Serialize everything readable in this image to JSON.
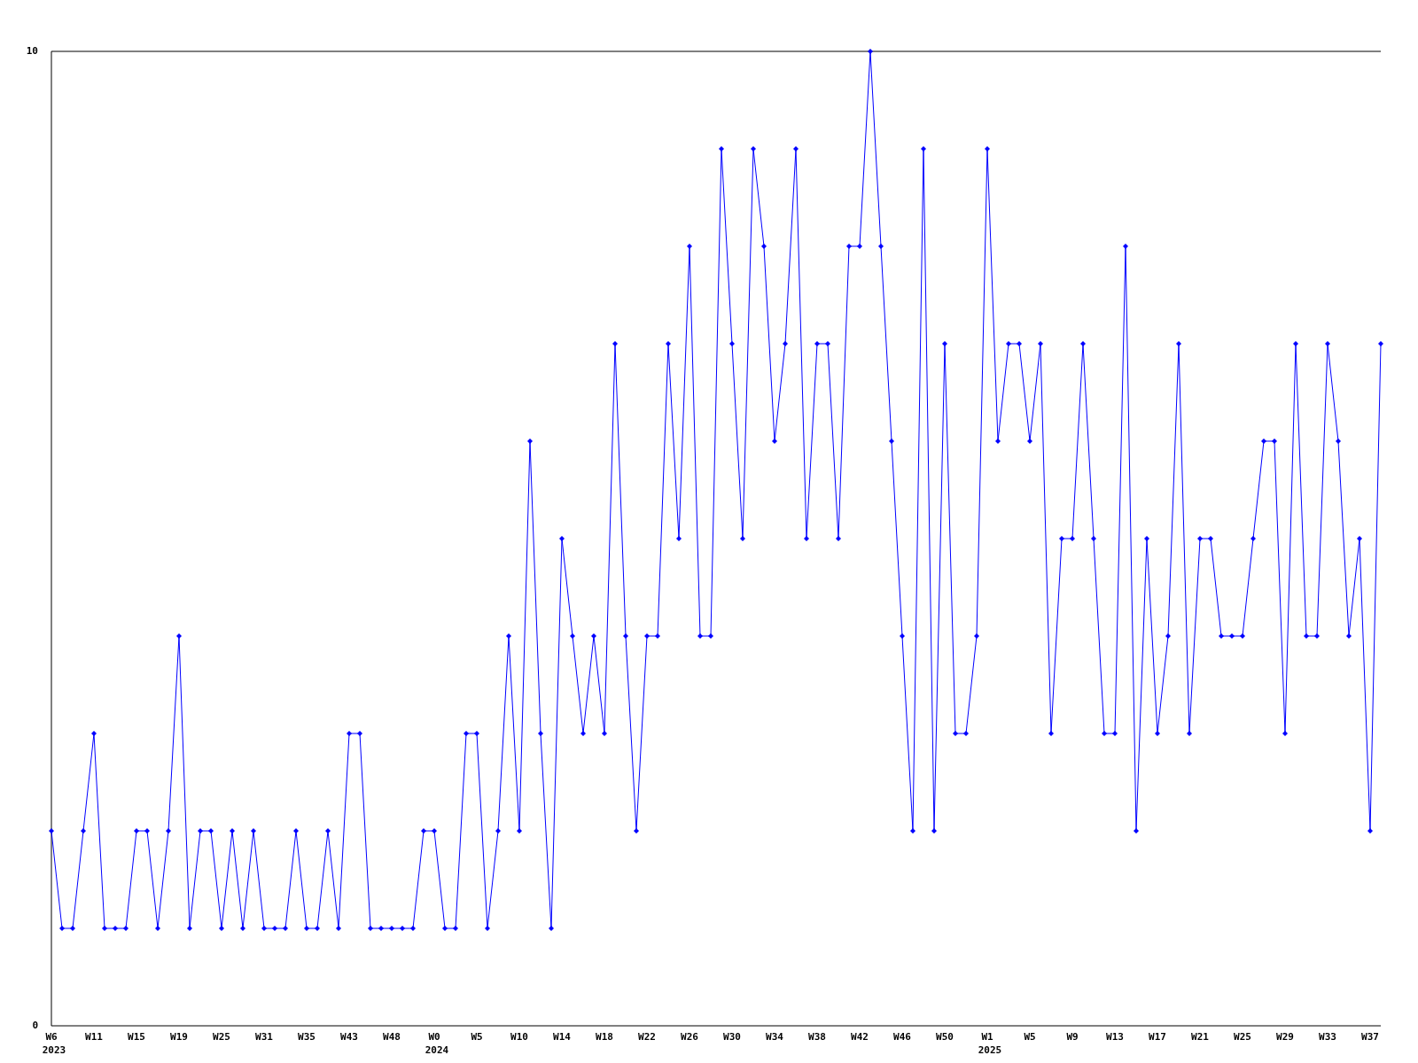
{
  "chart_data": {
    "type": "line",
    "color": "#0000ff",
    "marker": "diamond",
    "grid": false,
    "ylim": [
      0,
      10
    ],
    "yticks": [
      0,
      10
    ],
    "categories": [
      "W6\n2023",
      null,
      null,
      null,
      "W11",
      null,
      null,
      null,
      "W15",
      null,
      null,
      null,
      "W19",
      null,
      null,
      null,
      "W25",
      null,
      null,
      null,
      "W31",
      null,
      null,
      null,
      "W35",
      null,
      null,
      null,
      "W43",
      null,
      null,
      null,
      "W48",
      null,
      null,
      null,
      "W0\n2024",
      null,
      null,
      null,
      "W5",
      null,
      null,
      null,
      "W10",
      null,
      null,
      null,
      "W14",
      null,
      null,
      null,
      "W18",
      null,
      null,
      null,
      "W22",
      null,
      null,
      null,
      "W26",
      null,
      null,
      null,
      "W30",
      null,
      null,
      null,
      "W34",
      null,
      null,
      null,
      "W38",
      null,
      null,
      null,
      "W42",
      null,
      null,
      null,
      "W46",
      null,
      null,
      null,
      "W50",
      null,
      null,
      null,
      "W1\n2025",
      null,
      null,
      null,
      "W5",
      null,
      null,
      null,
      "W9",
      null,
      null,
      null,
      "W13",
      null,
      null,
      null,
      "W17",
      null,
      null,
      null,
      "W21",
      null,
      null,
      null,
      "W25",
      null,
      null,
      null,
      "W29",
      null,
      null,
      null,
      "W33",
      null,
      null,
      null,
      "W37",
      null
    ],
    "values": [
      2,
      1,
      1,
      2,
      3,
      1,
      1,
      1,
      2,
      2,
      1,
      2,
      4,
      1,
      2,
      2,
      1,
      2,
      1,
      2,
      1,
      1,
      1,
      2,
      1,
      1,
      2,
      1,
      3,
      3,
      1,
      1,
      1,
      1,
      1,
      2,
      2,
      1,
      1,
      3,
      3,
      1,
      2,
      4,
      2,
      6,
      3,
      1,
      5,
      4,
      3,
      4,
      3,
      7,
      4,
      2,
      4,
      4,
      7,
      5,
      8,
      4,
      4,
      9,
      7,
      5,
      9,
      8,
      6,
      7,
      9,
      5,
      7,
      7,
      5,
      8,
      8,
      10,
      8,
      6,
      4,
      2,
      9,
      2,
      7,
      3,
      3,
      4,
      9,
      6,
      7,
      7,
      6,
      7,
      3,
      5,
      5,
      7,
      5,
      3,
      3,
      8,
      2,
      5,
      3,
      4,
      7,
      3,
      5,
      5,
      4,
      4,
      4,
      5,
      6,
      6,
      3,
      7,
      4,
      4,
      7,
      6,
      4,
      5,
      2,
      7
    ]
  }
}
